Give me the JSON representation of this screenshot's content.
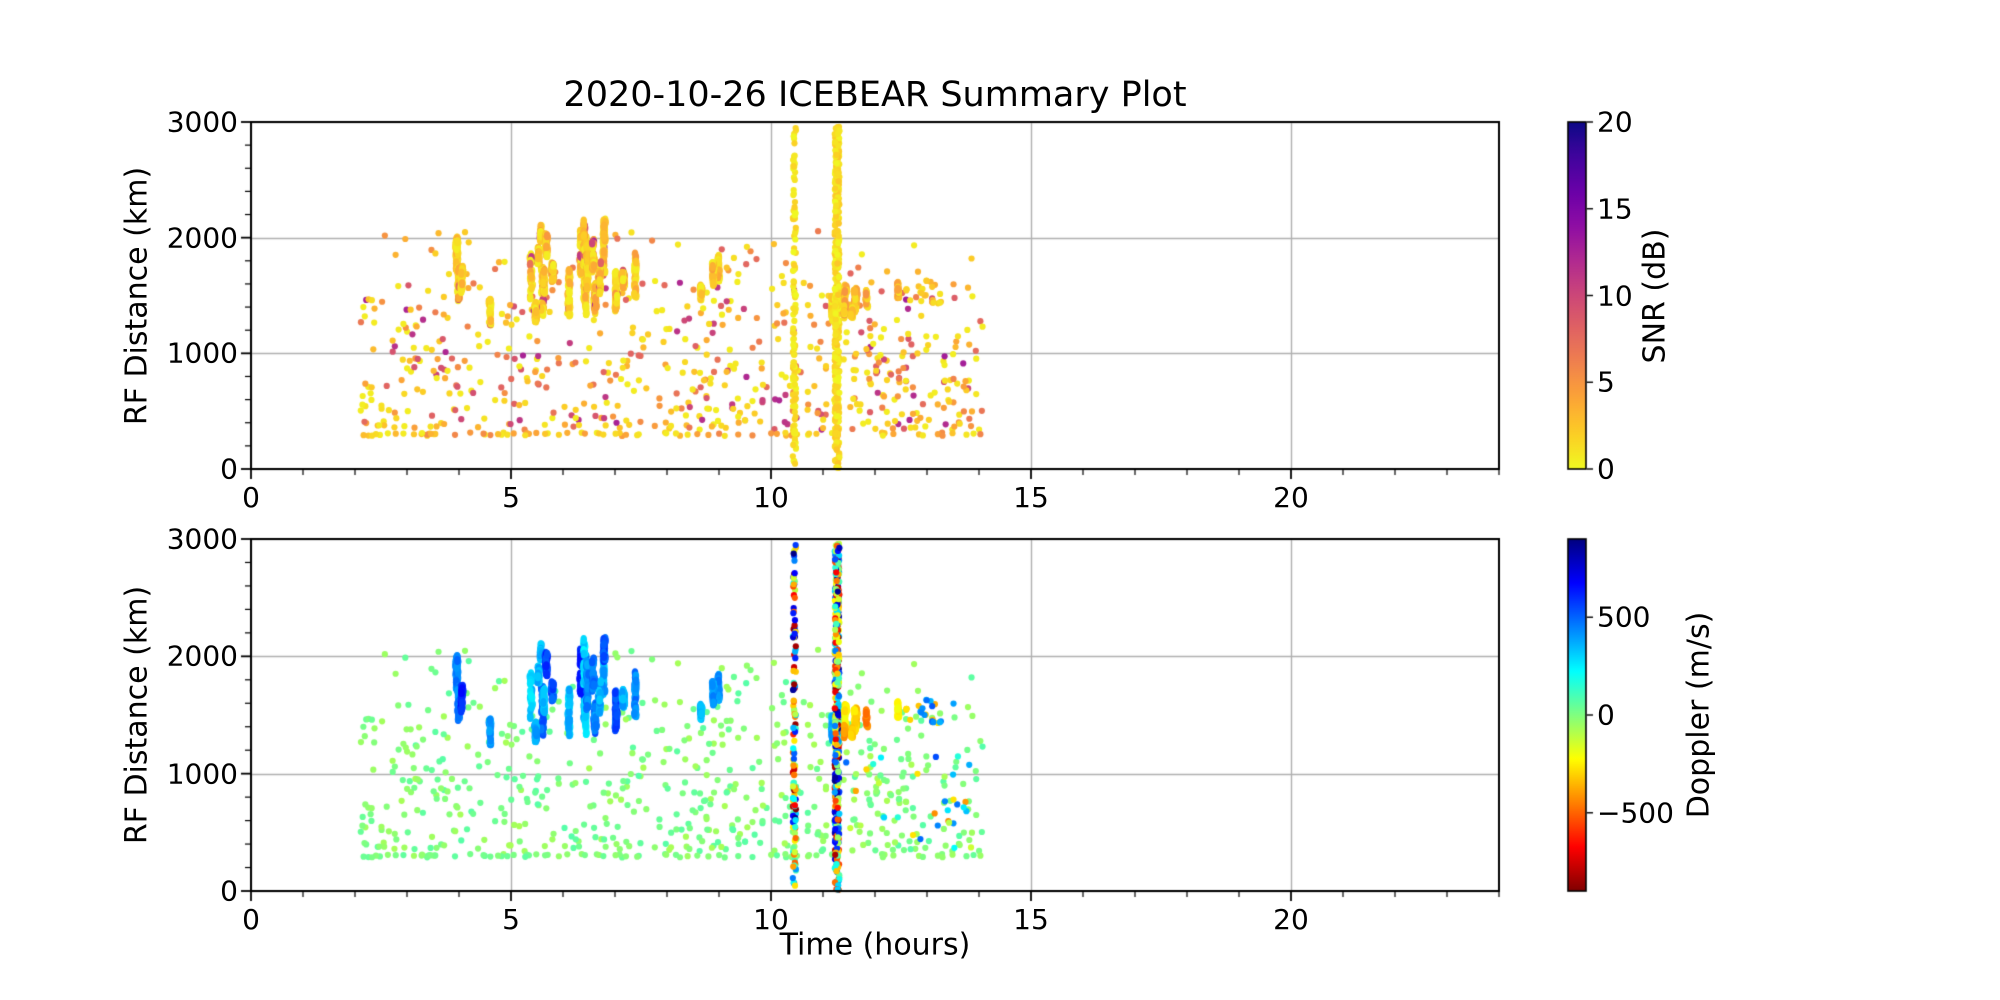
{
  "figure": {
    "title": "2020-10-26 ICEBEAR Summary Plot",
    "background_color": "#ffffff",
    "grid_color": "#b0b0b0",
    "text_color": "#000000"
  },
  "chart_data": {
    "type": "scatter",
    "title": "2020-10-26 ICEBEAR Summary Plot",
    "xlabel": "Time (hours)",
    "ylabel": "RF Distance (km)",
    "xlim": [
      0,
      24
    ],
    "ylim": [
      0,
      3000
    ],
    "x_major_ticks": [
      0,
      5,
      10,
      15,
      20
    ],
    "x_minor_step": 1,
    "y_major_ticks": [
      0,
      1000,
      2000,
      3000
    ],
    "y_minor_step": 200,
    "grid": true,
    "legend": "none",
    "seed": 20201026,
    "panels": [
      {
        "id": "snr-panel",
        "color_by": "snr_db",
        "colormap": "plasma_r",
        "vmin": 0,
        "vmax": 20,
        "colorbar": {
          "label": "SNR (dB)",
          "ticks": [
            {
              "value": 0,
              "label": "0"
            },
            {
              "value": 5,
              "label": "5"
            },
            {
              "value": 10,
              "label": "10"
            },
            {
              "value": 15,
              "label": "15"
            },
            {
              "value": 20,
              "label": "20"
            }
          ]
        }
      },
      {
        "id": "doppler-panel",
        "color_by": "doppler_ms",
        "colormap": "jet_r",
        "vmin": -900,
        "vmax": 900,
        "colorbar": {
          "label": "Doppler (m/s)",
          "ticks": [
            {
              "value": -500,
              "label": "−500"
            },
            {
              "value": 0,
              "label": "0"
            },
            {
              "value": 500,
              "label": "500"
            }
          ]
        }
      }
    ],
    "features": [
      {
        "name": "background-scatter",
        "kind": "uniform",
        "count": 520,
        "t": [
          2.1,
          14.1
        ],
        "rf": [
          340,
          1620
        ],
        "rf_pow": 1.35,
        "snr": [
          0.5,
          13
        ],
        "snr_pow": 2.6,
        "doppler": [
          -75,
          75
        ]
      },
      {
        "name": "upper-sparse-scatter",
        "kind": "uniform",
        "count": 45,
        "t": [
          2.3,
          13.9
        ],
        "rf": [
          1620,
          2060
        ],
        "snr": [
          0.5,
          8
        ],
        "snr_pow": 2,
        "doppler": [
          -75,
          75
        ]
      },
      {
        "name": "range-row-300km",
        "kind": "uniform",
        "count": 85,
        "t": [
          2.15,
          14.1
        ],
        "rf": [
          286,
          316
        ],
        "snr": [
          0.5,
          6
        ],
        "snr_pow": 1.6,
        "doppler": [
          -60,
          60
        ]
      },
      {
        "name": "echo-streaks-main-5to7h",
        "kind": "streaks",
        "streaks": 26,
        "t": [
          5.2,
          7.6
        ],
        "rf": [
          1280,
          2160
        ],
        "len": [
          120,
          430
        ],
        "dots": [
          24,
          52
        ],
        "snr": [
          0.5,
          5
        ],
        "snr_pow": 1.8,
        "fleck_chance": 0.07,
        "fleck_snr": [
          7,
          13
        ],
        "doppler": [
          260,
          620
        ],
        "doppler_jitter": 140
      },
      {
        "name": "echo-streaks-4h-upper",
        "kind": "streaks",
        "streaks": 2,
        "t": [
          3.82,
          3.98
        ],
        "rf": [
          1700,
          2060
        ],
        "len": [
          200,
          330
        ],
        "dots": [
          34,
          50
        ],
        "snr": [
          0.5,
          4.5
        ],
        "snr_pow": 1.8,
        "fleck_chance": 0.04,
        "fleck_snr": [
          7,
          11
        ],
        "doppler": [
          350,
          550
        ],
        "doppler_jitter": 120
      },
      {
        "name": "echo-streaks-4h-lower",
        "kind": "streaks",
        "streaks": 2,
        "t": [
          3.96,
          4.12
        ],
        "rf": [
          1440,
          1760
        ],
        "len": [
          180,
          300
        ],
        "dots": [
          30,
          44
        ],
        "snr": [
          0.5,
          4.5
        ],
        "snr_pow": 1.8,
        "fleck_chance": 0.04,
        "fleck_snr": [
          7,
          11
        ],
        "doppler": [
          380,
          620
        ],
        "doppler_jitter": 120
      },
      {
        "name": "echo-streak-4p5h",
        "kind": "streaks",
        "streaks": 1,
        "t": [
          4.5,
          4.62
        ],
        "rf": [
          1240,
          1520
        ],
        "len": [
          160,
          260
        ],
        "dots": [
          24,
          32
        ],
        "snr": [
          0.5,
          4
        ],
        "snr_pow": 1.8,
        "fleck_chance": 0.03,
        "fleck_snr": [
          7,
          10
        ],
        "doppler": [
          300,
          460
        ],
        "doppler_jitter": 110
      },
      {
        "name": "echo-streaks-9h",
        "kind": "streaks",
        "streaks": 2,
        "t": [
          8.82,
          9.0
        ],
        "rf": [
          1490,
          1880
        ],
        "len": [
          170,
          330
        ],
        "dots": [
          30,
          44
        ],
        "snr": [
          0.5,
          4.5
        ],
        "snr_pow": 1.8,
        "fleck_chance": 0.04,
        "fleck_snr": [
          7,
          11
        ],
        "doppler": [
          350,
          560
        ],
        "doppler_jitter": 120
      },
      {
        "name": "echo-streak-8p6h",
        "kind": "streaks",
        "streaks": 1,
        "t": [
          8.58,
          8.68
        ],
        "rf": [
          1450,
          1650
        ],
        "len": [
          120,
          190
        ],
        "dots": [
          16,
          24
        ],
        "snr": [
          0.5,
          4
        ],
        "snr_pow": 1.8,
        "fleck_chance": 0.03,
        "fleck_snr": [
          7,
          10
        ],
        "doppler": [
          300,
          460
        ],
        "doppler_jitter": 110
      },
      {
        "name": "echo-streaks-11p2h",
        "kind": "streaks",
        "streaks": 2,
        "t": [
          11.18,
          11.32
        ],
        "rf": [
          1230,
          1530
        ],
        "len": [
          140,
          260
        ],
        "dots": [
          18,
          30
        ],
        "snr": [
          0.5,
          3
        ],
        "snr_pow": 1.6,
        "fleck_chance": 0,
        "fleck_snr": [
          0,
          0
        ],
        "doppler": [
          250,
          500
        ],
        "doppler_jitter": 120
      },
      {
        "name": "interference-stripe-1",
        "kind": "stripe",
        "t0": 10.45,
        "t_jitter": 0.03,
        "count": 120,
        "rf": [
          20,
          2960
        ],
        "snr": [
          0,
          2
        ],
        "doppler": [
          -900,
          900
        ]
      },
      {
        "name": "interference-stripe-2",
        "kind": "stripe",
        "t0": 11.27,
        "t_jitter": 0.045,
        "count": 420,
        "rf": [
          0,
          2960
        ],
        "snr": [
          0,
          2.5
        ],
        "doppler": [
          -900,
          900
        ]
      },
      {
        "name": "negative-doppler-cluster",
        "kind": "streaks",
        "streaks": 7,
        "t": [
          11.35,
          12.68
        ],
        "rf": [
          1290,
          1660
        ],
        "len": [
          80,
          210
        ],
        "dots": [
          10,
          20
        ],
        "snr": [
          1,
          6
        ],
        "snr_pow": 1.6,
        "fleck_chance": 0,
        "fleck_snr": [
          0,
          0
        ],
        "doppler": [
          -470,
          -230
        ],
        "doppler_jitter": 90
      },
      {
        "name": "gold-specks-13h",
        "kind": "uniform",
        "count": 10,
        "t": [
          12.6,
          13.25
        ],
        "rf": [
          1430,
          1620
        ],
        "snr": [
          1,
          5
        ],
        "snr_pow": 1.5,
        "doppler": [
          -380,
          -260
        ]
      },
      {
        "name": "positive-doppler-specks",
        "kind": "uniform",
        "count": 14,
        "t": [
          12.85,
          13.55
        ],
        "rf": [
          1430,
          1630
        ],
        "snr": [
          1,
          5
        ],
        "snr_pow": 1.5,
        "doppler": [
          350,
          560
        ]
      },
      {
        "name": "mixed-doppler-sprinkle",
        "kind": "uniform",
        "count": 38,
        "t": [
          11.3,
          13.85
        ],
        "rf": [
          350,
          1150
        ],
        "snr": [
          0.5,
          6
        ],
        "snr_pow": 1.8,
        "doppler": [
          -460,
          560
        ]
      }
    ]
  }
}
